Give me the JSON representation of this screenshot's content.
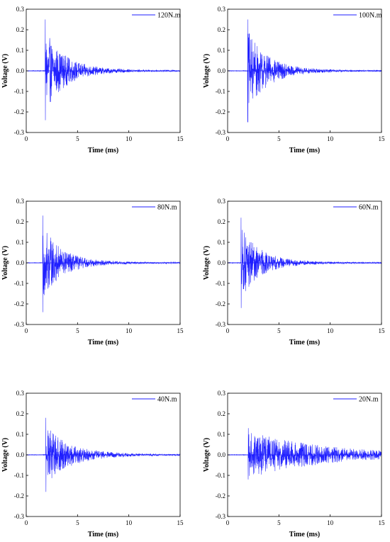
{
  "chart_data": [
    {
      "type": "line",
      "xlabel": "Time (ms)",
      "ylabel": "Voltage (V)",
      "xlim": [
        0,
        15
      ],
      "ylim": [
        -0.3,
        0.3
      ],
      "xticks": [
        "0",
        "5",
        "10",
        "15"
      ],
      "yticks": [
        "-0.3",
        "-0.2",
        "-0.1",
        "0.0",
        "0.1",
        "0.2",
        "0.3"
      ],
      "series": [
        {
          "name": "120N.m",
          "color": "#1f1fff",
          "signal": {
            "onset_ms": 1.85,
            "peak_pos_V": 0.25,
            "peak_neg_V": -0.24,
            "decay_ms": 1.9,
            "sustain_V": 0.012
          }
        }
      ],
      "legend": "top-right"
    },
    {
      "type": "line",
      "xlabel": "Time (ms)",
      "ylabel": "Voltage (V)",
      "xlim": [
        0,
        15
      ],
      "ylim": [
        -0.3,
        0.3
      ],
      "xticks": [
        "0",
        "5",
        "10",
        "15"
      ],
      "yticks": [
        "-0.3",
        "-0.2",
        "-0.1",
        "0.0",
        "0.1",
        "0.2",
        "0.3"
      ],
      "series": [
        {
          "name": "100N.m",
          "color": "#1f1fff",
          "signal": {
            "onset_ms": 1.95,
            "peak_pos_V": 0.25,
            "peak_neg_V": -0.25,
            "decay_ms": 1.9,
            "sustain_V": 0.012
          }
        }
      ],
      "legend": "top-right"
    },
    {
      "type": "line",
      "xlabel": "Time (ms)",
      "ylabel": "Voltage (V)",
      "xlim": [
        0,
        15
      ],
      "ylim": [
        -0.3,
        0.3
      ],
      "xticks": [
        "0",
        "5",
        "10",
        "15"
      ],
      "yticks": [
        "-0.3",
        "-0.2",
        "-0.1",
        "0.0",
        "0.1",
        "0.2",
        "0.3"
      ],
      "series": [
        {
          "name": "80N.m",
          "color": "#1f1fff",
          "signal": {
            "onset_ms": 1.6,
            "peak_pos_V": 0.23,
            "peak_neg_V": -0.24,
            "decay_ms": 1.8,
            "sustain_V": 0.012
          }
        }
      ],
      "legend": "top-right"
    },
    {
      "type": "line",
      "xlabel": "Time (ms)",
      "ylabel": "Voltage (V)",
      "xlim": [
        0,
        15
      ],
      "ylim": [
        -0.3,
        0.3
      ],
      "xticks": [
        "0",
        "5",
        "10",
        "15"
      ],
      "yticks": [
        "-0.3",
        "-0.2",
        "-0.1",
        "0.0",
        "0.1",
        "0.2",
        "0.3"
      ],
      "series": [
        {
          "name": "60N.m",
          "color": "#1f1fff",
          "signal": {
            "onset_ms": 1.3,
            "peak_pos_V": 0.22,
            "peak_neg_V": -0.22,
            "decay_ms": 1.8,
            "sustain_V": 0.012
          }
        }
      ],
      "legend": "top-right"
    },
    {
      "type": "line",
      "xlabel": "Time (ms)",
      "ylabel": "Voltage (V)",
      "xlim": [
        0,
        15
      ],
      "ylim": [
        -0.3,
        0.3
      ],
      "xticks": [
        "0",
        "5",
        "10",
        "15"
      ],
      "yticks": [
        "-0.3",
        "-0.2",
        "-0.1",
        "0.0",
        "0.1",
        "0.2",
        "0.3"
      ],
      "series": [
        {
          "name": "40N.m",
          "color": "#1f1fff",
          "signal": {
            "onset_ms": 1.9,
            "peak_pos_V": 0.18,
            "peak_neg_V": -0.18,
            "decay_ms": 2.3,
            "sustain_V": 0.012
          }
        }
      ],
      "legend": "top-right"
    },
    {
      "type": "line",
      "xlabel": "Time (ms)",
      "ylabel": "Voltage (V)",
      "xlim": [
        0,
        15
      ],
      "ylim": [
        -0.3,
        0.3
      ],
      "xticks": [
        "0",
        "5",
        "10",
        "15"
      ],
      "yticks": [
        "-0.3",
        "-0.2",
        "-0.1",
        "0.0",
        "0.1",
        "0.2",
        "0.3"
      ],
      "series": [
        {
          "name": "20N.m",
          "color": "#1f1fff",
          "signal": {
            "onset_ms": 2.0,
            "peak_pos_V": 0.13,
            "peak_neg_V": -0.12,
            "decay_ms": 7.5,
            "sustain_V": 0.018
          }
        }
      ],
      "legend": "top-right"
    }
  ]
}
